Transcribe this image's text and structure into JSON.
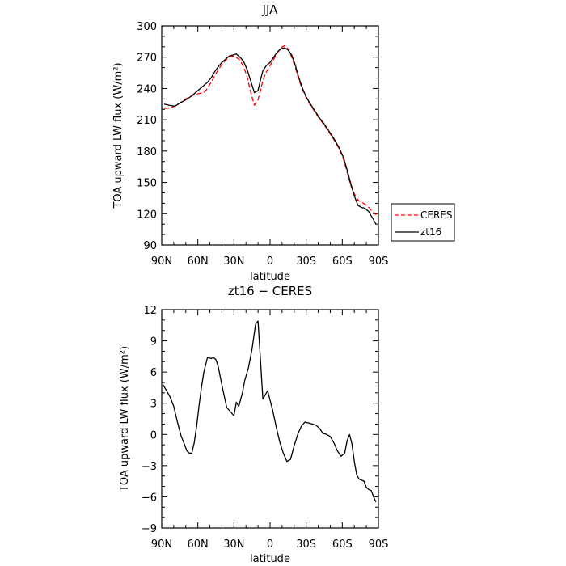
{
  "chart_data": [
    {
      "type": "line",
      "title": "JJA",
      "xlabel": "latitude",
      "ylabel": "TOA upward LW flux (W/m²)",
      "ylim": [
        90,
        300
      ],
      "yticks": [
        90,
        120,
        150,
        180,
        210,
        240,
        270,
        300
      ],
      "xlim": [
        90,
        -90
      ],
      "xticks": [
        90,
        60,
        30,
        0,
        -30,
        -60,
        -90
      ],
      "xtick_labels": [
        "90N",
        "60N",
        "30N",
        "0",
        "30S",
        "60S",
        "90S"
      ],
      "legend_position": "right",
      "series": [
        {
          "name": "CERES",
          "color": "#ff0000",
          "dash": "dashed",
          "x": [
            88,
            84,
            79,
            75,
            70,
            65,
            60,
            55,
            52,
            49,
            46,
            43,
            40,
            37,
            34,
            31,
            28,
            25,
            22,
            19,
            16,
            13,
            10,
            8,
            6,
            3,
            0,
            -3,
            -6,
            -9,
            -12,
            -15,
            -18,
            -21,
            -24,
            -27,
            -30,
            -33,
            -37,
            -41,
            -45,
            -49,
            -53,
            -57,
            -61,
            -64,
            -67,
            -70,
            -73,
            -76,
            -79,
            -82,
            -85,
            -88
          ],
          "y": [
            221,
            221,
            223,
            226,
            230,
            233,
            235,
            236,
            240,
            246,
            252,
            258,
            263,
            267,
            270,
            271,
            270,
            267,
            261,
            251,
            236,
            224,
            229,
            238,
            248,
            256,
            262,
            268,
            274,
            279,
            281,
            278,
            270,
            260,
            248,
            239,
            231,
            225,
            218,
            211,
            205,
            198,
            191,
            183,
            172,
            160,
            147,
            139,
            133,
            131,
            129,
            126,
            122,
            119
          ]
        },
        {
          "name": "zt16",
          "color": "#000000",
          "dash": "solid",
          "x": [
            88,
            84,
            79,
            75,
            70,
            65,
            60,
            55,
            52,
            49,
            46,
            43,
            40,
            37,
            34,
            31,
            28,
            25,
            22,
            19,
            16,
            13,
            10,
            8,
            6,
            3,
            0,
            -3,
            -6,
            -9,
            -12,
            -15,
            -18,
            -21,
            -24,
            -27,
            -30,
            -33,
            -37,
            -41,
            -45,
            -49,
            -53,
            -57,
            -61,
            -64,
            -67,
            -70,
            -73,
            -76,
            -79,
            -82,
            -85,
            -88
          ],
          "y": [
            225,
            224,
            223,
            226,
            229,
            233,
            238,
            243,
            246,
            250,
            256,
            261,
            265,
            268,
            271,
            272,
            273,
            270,
            266,
            258,
            247,
            236,
            238,
            248,
            257,
            262,
            265,
            270,
            275,
            278,
            279,
            277,
            272,
            262,
            250,
            240,
            232,
            226,
            219,
            212,
            206,
            199,
            192,
            184,
            174,
            162,
            149,
            137,
            128,
            126,
            125,
            122,
            116,
            110
          ]
        }
      ]
    },
    {
      "type": "line",
      "title": "zt16 − CERES",
      "xlabel": "latitude",
      "ylabel": "TOA upward LW flux (W/m²)",
      "ylim": [
        -9,
        12
      ],
      "yticks": [
        -9,
        -6,
        -3,
        0,
        3,
        6,
        9,
        12
      ],
      "xlim": [
        90,
        -90
      ],
      "xticks": [
        90,
        60,
        30,
        0,
        -30,
        -60,
        -90
      ],
      "xtick_labels": [
        "90N",
        "60N",
        "30N",
        "0",
        "30S",
        "60S",
        "90S"
      ],
      "series": [
        {
          "color": "#000000",
          "dash": "solid",
          "x": [
            89,
            86,
            83,
            80,
            77,
            74,
            71,
            69,
            67,
            65,
            63,
            61,
            59,
            57,
            55,
            52,
            49,
            47,
            45,
            43,
            41,
            39,
            36,
            33,
            30,
            28,
            26,
            23,
            21,
            18,
            15,
            12,
            10,
            8,
            6,
            4,
            2,
            0,
            -2,
            -5,
            -8,
            -11,
            -14,
            -17,
            -20,
            -23,
            -26,
            -29,
            -32,
            -35,
            -38,
            -41,
            -44,
            -47,
            -50,
            -53,
            -56,
            -59,
            -62,
            -64,
            -66,
            -68,
            -70,
            -72,
            -74,
            -76,
            -78,
            -80,
            -82,
            -84,
            -86,
            -88
          ],
          "y": [
            4.8,
            4.2,
            3.6,
            2.7,
            1.2,
            -0.1,
            -1.0,
            -1.6,
            -1.8,
            -1.8,
            -0.8,
            0.8,
            2.8,
            4.5,
            6.0,
            7.4,
            7.3,
            7.4,
            7.2,
            6.5,
            5.3,
            4.2,
            2.6,
            2.2,
            1.8,
            3.1,
            2.7,
            4.0,
            5.2,
            6.4,
            8.2,
            10.6,
            10.9,
            7.2,
            3.4,
            3.8,
            4.2,
            3.3,
            2.4,
            0.8,
            -0.7,
            -1.8,
            -2.6,
            -2.4,
            -1.1,
            0.0,
            0.8,
            1.2,
            1.1,
            1.0,
            0.9,
            0.6,
            0.1,
            0.0,
            -0.2,
            -0.8,
            -1.6,
            -2.1,
            -1.8,
            -0.6,
            0.0,
            -0.9,
            -2.6,
            -3.9,
            -4.3,
            -4.4,
            -4.5,
            -5.1,
            -5.3,
            -5.4,
            -6.0,
            -6.5
          ]
        }
      ]
    }
  ]
}
